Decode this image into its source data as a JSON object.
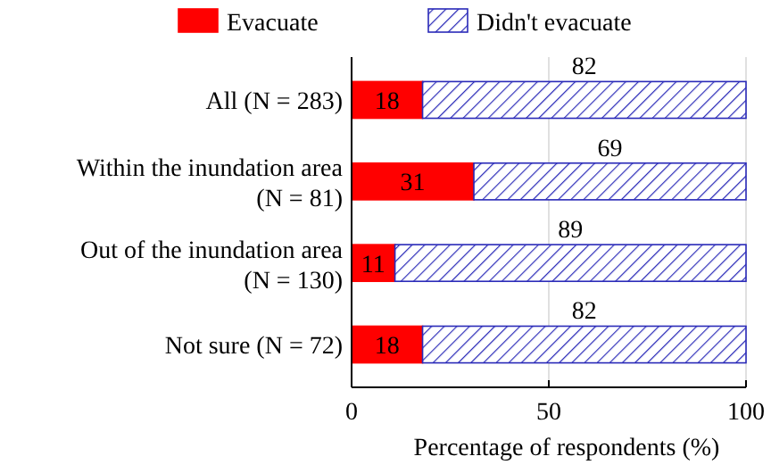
{
  "chart_data": {
    "type": "bar",
    "orientation": "horizontal",
    "stacked": true,
    "xlabel": "Percentage of respondents (%)",
    "categories": [
      "All (N = 283)",
      "Within the inundation area (N = 81)",
      "Out of the inundation area (N = 130)",
      "Not sure (N = 72)"
    ],
    "series": [
      {
        "name": "Evacuate",
        "color": "#ff0000",
        "values": [
          18,
          31,
          11,
          18
        ]
      },
      {
        "name": "Didn't evacuate",
        "color": "#2a2ab8",
        "values": [
          82,
          69,
          89,
          82
        ]
      }
    ],
    "xlim": [
      0,
      100
    ],
    "xticks": [
      0,
      50,
      100
    ],
    "grid": "x",
    "legend": "top",
    "data_labels": true
  }
}
